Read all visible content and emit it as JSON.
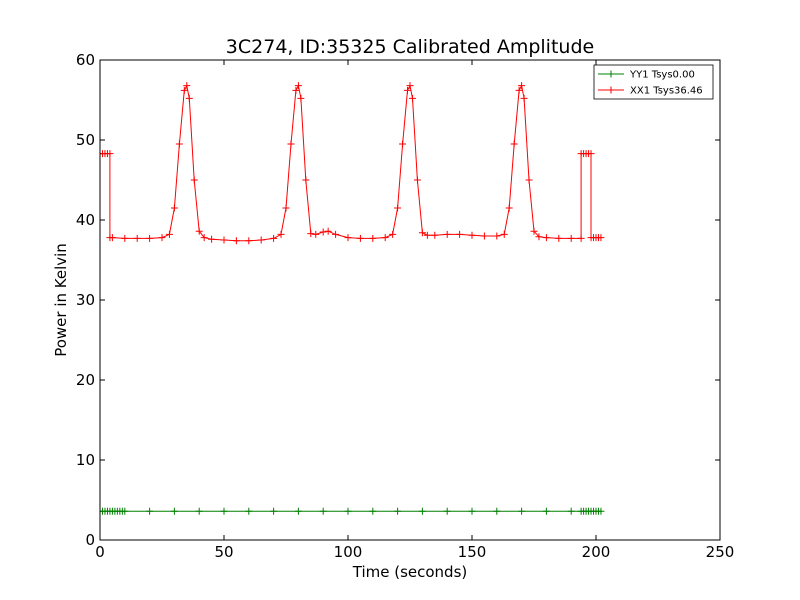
{
  "chart_data": {
    "type": "line",
    "title": "3C274, ID:35325 Calibrated Amplitude",
    "xlabel": "Time (seconds)",
    "ylabel": "Power in Kelvin",
    "xlim": [
      0,
      250
    ],
    "ylim": [
      0,
      60
    ],
    "xticks": [
      0,
      50,
      100,
      150,
      200,
      250
    ],
    "yticks": [
      0,
      10,
      20,
      30,
      40,
      50,
      60
    ],
    "grid": false,
    "legend_position": "top-right",
    "marker": "plus",
    "series": [
      {
        "name": "YY1 Tsys0.00",
        "color": "#008000",
        "x": [
          0,
          1,
          2,
          3,
          4,
          5,
          6,
          7,
          8,
          9,
          10,
          20,
          30,
          40,
          50,
          60,
          70,
          80,
          90,
          100,
          110,
          120,
          130,
          140,
          150,
          160,
          170,
          180,
          190,
          194,
          195,
          196,
          197,
          198,
          199,
          200,
          201,
          202
        ],
        "y": [
          3.6,
          3.6,
          3.6,
          3.6,
          3.6,
          3.6,
          3.6,
          3.6,
          3.6,
          3.6,
          3.6,
          3.6,
          3.6,
          3.6,
          3.6,
          3.6,
          3.6,
          3.6,
          3.6,
          3.6,
          3.6,
          3.6,
          3.6,
          3.6,
          3.6,
          3.6,
          3.6,
          3.6,
          3.6,
          3.6,
          3.6,
          3.6,
          3.6,
          3.6,
          3.6,
          3.6,
          3.6,
          3.6
        ]
      },
      {
        "name": "XX1 Tsys36.46",
        "color": "#ff0000",
        "x": [
          0,
          1,
          2,
          3,
          4,
          4,
          5,
          10,
          15,
          20,
          25,
          28,
          30,
          32,
          34,
          35,
          36,
          38,
          40,
          42,
          45,
          50,
          55,
          60,
          65,
          70,
          73,
          75,
          77,
          79,
          80,
          81,
          83,
          85,
          87,
          90,
          92,
          95,
          100,
          105,
          110,
          115,
          118,
          120,
          122,
          124,
          125,
          126,
          128,
          130,
          132,
          135,
          140,
          145,
          150,
          155,
          160,
          163,
          165,
          167,
          169,
          170,
          171,
          173,
          175,
          177,
          180,
          185,
          190,
          194,
          194,
          195,
          196,
          197,
          198,
          198,
          199,
          200,
          201,
          202
        ],
        "y": [
          48.3,
          48.3,
          48.3,
          48.3,
          48.3,
          37.8,
          37.8,
          37.7,
          37.7,
          37.7,
          37.8,
          38.2,
          41.5,
          49.5,
          56.2,
          56.8,
          55.2,
          45.0,
          38.6,
          37.8,
          37.6,
          37.5,
          37.4,
          37.4,
          37.5,
          37.7,
          38.2,
          41.5,
          49.5,
          56.2,
          56.8,
          55.2,
          45.0,
          38.3,
          38.2,
          38.5,
          38.6,
          38.2,
          37.8,
          37.7,
          37.7,
          37.8,
          38.2,
          41.5,
          49.5,
          56.2,
          56.8,
          55.2,
          45.0,
          38.4,
          38.1,
          38.1,
          38.2,
          38.2,
          38.1,
          38.0,
          38.0,
          38.2,
          41.5,
          49.5,
          56.2,
          56.8,
          55.2,
          45.0,
          38.6,
          37.9,
          37.8,
          37.7,
          37.7,
          37.7,
          48.3,
          48.3,
          48.3,
          48.3,
          48.3,
          37.8,
          37.8,
          37.8,
          37.8,
          37.8
        ]
      }
    ]
  }
}
